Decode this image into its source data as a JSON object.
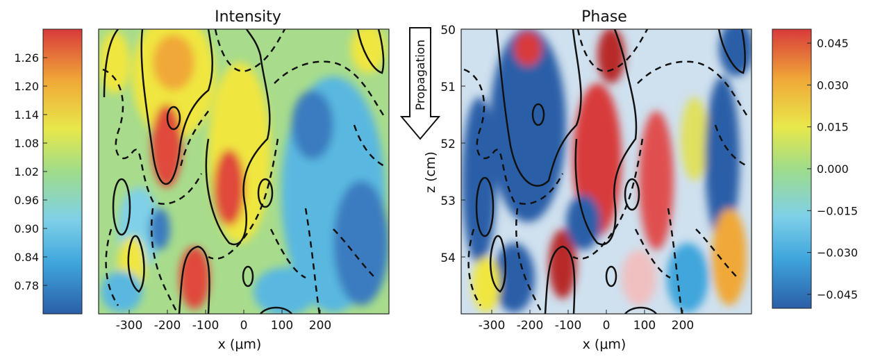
{
  "chart_data": [
    {
      "type": "heatmap",
      "title": "Intensity",
      "xlabel": "x (μm)",
      "ylabel": "",
      "xlim": [
        -380,
        380
      ],
      "ylim": [
        50,
        55
      ],
      "x_ticks": [
        -300,
        -200,
        -100,
        0,
        100,
        200
      ],
      "colorbar": {
        "ticks": [
          "1.26",
          "1.20",
          "1.14",
          "1.08",
          "1.02",
          "0.96",
          "0.90",
          "0.84",
          "0.78"
        ],
        "range": [
          0.72,
          1.32
        ],
        "placement": "left"
      },
      "contours": {
        "solid": "high",
        "dashed": "low"
      }
    },
    {
      "type": "heatmap",
      "title": "Phase",
      "xlabel": "x (μm)",
      "ylabel": "z (cm)",
      "xlim": [
        -380,
        380
      ],
      "ylim": [
        55,
        50
      ],
      "x_ticks": [
        -300,
        -200,
        -100,
        0,
        100,
        200
      ],
      "y_ticks": [
        50,
        51,
        52,
        53,
        54
      ],
      "colorbar": {
        "ticks": [
          "0.045",
          "0.030",
          "0.015",
          "0.000",
          "−0.015",
          "−0.030",
          "−0.045"
        ],
        "range": [
          -0.05,
          0.05
        ],
        "placement": "right"
      },
      "contours": {
        "solid": "high",
        "dashed": "low"
      }
    }
  ],
  "annotation": {
    "label": "Propagation",
    "direction": "down"
  },
  "colormap": [
    "#2b5fa8",
    "#3fa6dc",
    "#7fd0e8",
    "#9fdc8a",
    "#e8e84a",
    "#f0a838",
    "#d83a3a"
  ]
}
